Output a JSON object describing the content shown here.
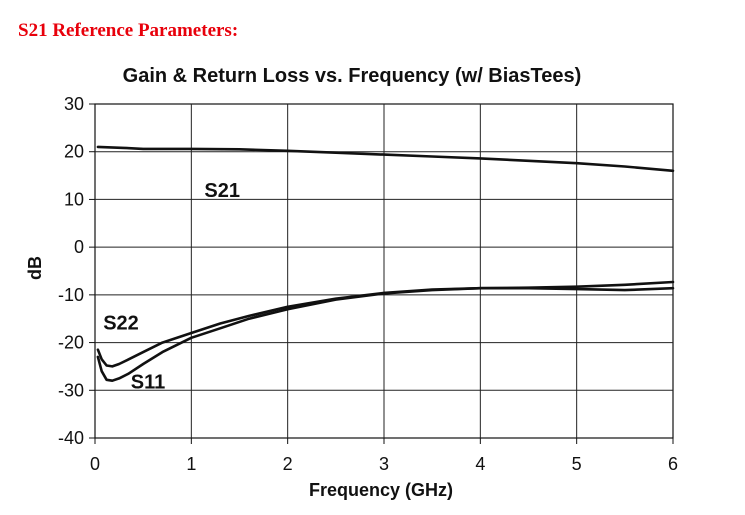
{
  "heading": "S21 Reference Parameters:",
  "chart_data": {
    "type": "line",
    "title": "Gain & Return Loss vs. Frequency (w/ BiasTees)",
    "xlabel": "Frequency (GHz)",
    "ylabel": "dB",
    "xlim": [
      0,
      6
    ],
    "ylim": [
      -40,
      30
    ],
    "xticks": [
      "0",
      "1",
      "2",
      "3",
      "4",
      "5",
      "6"
    ],
    "yticks": [
      "30",
      "20",
      "10",
      "0",
      "-10",
      "-20",
      "-30",
      "-40"
    ],
    "grid": true,
    "line_color": "#111111",
    "series": [
      {
        "name": "S21",
        "x": [
          0.03,
          0.3,
          0.5,
          1.0,
          1.5,
          2.0,
          2.5,
          3.0,
          3.5,
          4.0,
          4.5,
          5.0,
          5.5,
          6.0
        ],
        "y": [
          21.0,
          20.8,
          20.6,
          20.6,
          20.5,
          20.2,
          19.8,
          19.4,
          19.0,
          18.6,
          18.1,
          17.6,
          16.9,
          16.0
        ]
      },
      {
        "name": "S22",
        "x": [
          0.03,
          0.07,
          0.12,
          0.18,
          0.25,
          0.35,
          0.5,
          0.7,
          1.0,
          1.3,
          1.6,
          2.0,
          2.5,
          3.0,
          3.5,
          4.0,
          4.5,
          5.0,
          5.5,
          6.0
        ],
        "y": [
          -21.5,
          -23.5,
          -24.8,
          -25.0,
          -24.5,
          -23.5,
          -22.0,
          -20.0,
          -18.0,
          -16.0,
          -14.4,
          -12.5,
          -10.8,
          -9.6,
          -8.9,
          -8.6,
          -8.5,
          -8.3,
          -7.9,
          -7.3
        ]
      },
      {
        "name": "S11",
        "x": [
          0.03,
          0.07,
          0.12,
          0.18,
          0.25,
          0.35,
          0.5,
          0.7,
          1.0,
          1.3,
          1.6,
          2.0,
          2.5,
          3.0,
          3.5,
          4.0,
          4.5,
          5.0,
          5.5,
          6.0
        ],
        "y": [
          -23.0,
          -26.0,
          -27.8,
          -28.0,
          -27.5,
          -26.5,
          -24.5,
          -22.0,
          -19.0,
          -17.0,
          -15.0,
          -13.0,
          -11.0,
          -9.7,
          -9.0,
          -8.6,
          -8.6,
          -8.8,
          -9.0,
          -8.6
        ]
      }
    ]
  }
}
